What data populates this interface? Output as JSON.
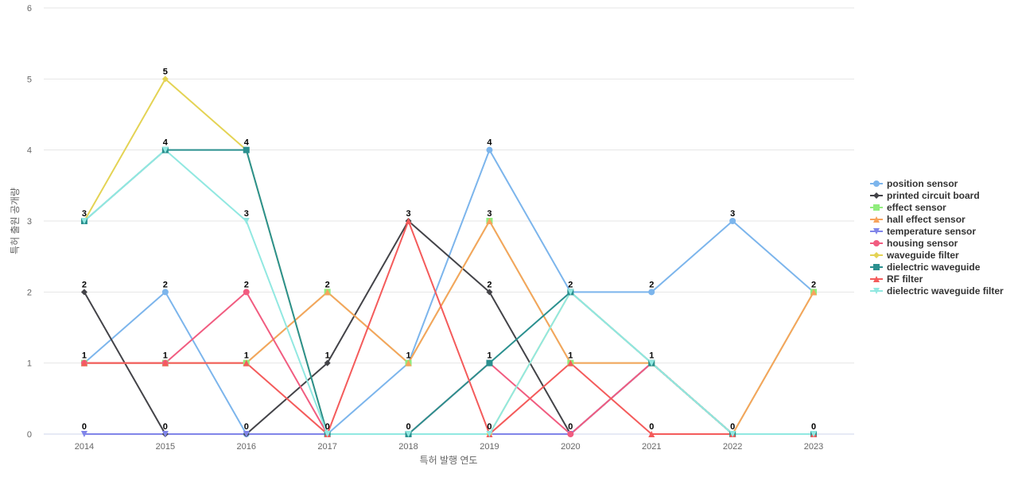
{
  "chart_data": {
    "type": "line",
    "xlabel": "특허 발행 연도",
    "ylabel": "특허 출원 공개량",
    "ylim": [
      0,
      6
    ],
    "yticks": [
      0,
      1,
      2,
      3,
      4,
      5,
      6
    ],
    "grid": true,
    "legend_position": "right",
    "categories": [
      "2014",
      "2015",
      "2016",
      "2017",
      "2018",
      "2019",
      "2020",
      "2021",
      "2022",
      "2023"
    ],
    "series": [
      {
        "name": "position sensor",
        "color": "#7cb5ec",
        "marker": "circle",
        "values": [
          1,
          2,
          0,
          0,
          1,
          4,
          2,
          2,
          3,
          2
        ]
      },
      {
        "name": "printed circuit board",
        "color": "#434348",
        "marker": "diamond",
        "values": [
          2,
          0,
          0,
          1,
          3,
          2,
          0,
          1,
          0,
          0
        ]
      },
      {
        "name": "effect sensor",
        "color": "#90ed7d",
        "marker": "square",
        "values": [
          1,
          1,
          1,
          2,
          1,
          3,
          1,
          1,
          0,
          2
        ]
      },
      {
        "name": "hall effect sensor",
        "color": "#f7a35c",
        "marker": "triangle",
        "values": [
          1,
          1,
          1,
          2,
          1,
          3,
          1,
          1,
          0,
          2
        ]
      },
      {
        "name": "temperature sensor",
        "color": "#8085e9",
        "marker": "triangle-down",
        "values": [
          0,
          0,
          0,
          0,
          0,
          0,
          0,
          1,
          0,
          0
        ]
      },
      {
        "name": "housing sensor",
        "color": "#f15c80",
        "marker": "circle",
        "values": [
          1,
          1,
          2,
          0,
          0,
          1,
          0,
          1,
          0,
          0
        ]
      },
      {
        "name": "waveguide filter",
        "color": "#e4d354",
        "marker": "diamond",
        "values": [
          3,
          5,
          4,
          0,
          0,
          0,
          2,
          1,
          0,
          0
        ]
      },
      {
        "name": "dielectric waveguide",
        "color": "#2b908f",
        "marker": "square",
        "values": [
          3,
          4,
          4,
          0,
          0,
          1,
          2,
          1,
          0,
          0
        ]
      },
      {
        "name": "RF filter",
        "color": "#f45b5b",
        "marker": "triangle",
        "values": [
          1,
          1,
          1,
          0,
          3,
          0,
          1,
          0,
          0,
          0
        ]
      },
      {
        "name": "dielectric waveguide filter",
        "color": "#91e8e1",
        "marker": "triangle-down",
        "values": [
          3,
          4,
          3,
          0,
          0,
          0,
          2,
          1,
          0,
          0
        ]
      }
    ],
    "data_labels": [
      {
        "x": "2014",
        "y": 3,
        "text": "3"
      },
      {
        "x": "2014",
        "y": 2,
        "text": "2"
      },
      {
        "x": "2014",
        "y": 1,
        "text": "1"
      },
      {
        "x": "2014",
        "y": 0,
        "text": "0"
      },
      {
        "x": "2015",
        "y": 5,
        "text": "5"
      },
      {
        "x": "2015",
        "y": 4,
        "text": "4"
      },
      {
        "x": "2015",
        "y": 2,
        "text": "2"
      },
      {
        "x": "2015",
        "y": 1,
        "text": "1"
      },
      {
        "x": "2015",
        "y": 0,
        "text": "0"
      },
      {
        "x": "2016",
        "y": 4,
        "text": "4"
      },
      {
        "x": "2016",
        "y": 3,
        "text": "3"
      },
      {
        "x": "2016",
        "y": 2,
        "text": "2"
      },
      {
        "x": "2016",
        "y": 1,
        "text": "1"
      },
      {
        "x": "2016",
        "y": 0,
        "text": "0"
      },
      {
        "x": "2017",
        "y": 2,
        "text": "2"
      },
      {
        "x": "2017",
        "y": 1,
        "text": "1"
      },
      {
        "x": "2017",
        "y": 0,
        "text": "0"
      },
      {
        "x": "2018",
        "y": 3,
        "text": "3"
      },
      {
        "x": "2018",
        "y": 1,
        "text": "1"
      },
      {
        "x": "2018",
        "y": 0,
        "text": "0"
      },
      {
        "x": "2019",
        "y": 4,
        "text": "4"
      },
      {
        "x": "2019",
        "y": 3,
        "text": "3"
      },
      {
        "x": "2019",
        "y": 2,
        "text": "2"
      },
      {
        "x": "2019",
        "y": 1,
        "text": "1"
      },
      {
        "x": "2019",
        "y": 0,
        "text": "0"
      },
      {
        "x": "2020",
        "y": 2,
        "text": "2"
      },
      {
        "x": "2020",
        "y": 1,
        "text": "1"
      },
      {
        "x": "2020",
        "y": 0,
        "text": "0"
      },
      {
        "x": "2021",
        "y": 2,
        "text": "2"
      },
      {
        "x": "2021",
        "y": 1,
        "text": "1"
      },
      {
        "x": "2021",
        "y": 0,
        "text": "0"
      },
      {
        "x": "2022",
        "y": 3,
        "text": "3"
      },
      {
        "x": "2022",
        "y": 0,
        "text": "0"
      },
      {
        "x": "2023",
        "y": 2,
        "text": "2"
      },
      {
        "x": "2023",
        "y": 0,
        "text": "0"
      }
    ]
  }
}
